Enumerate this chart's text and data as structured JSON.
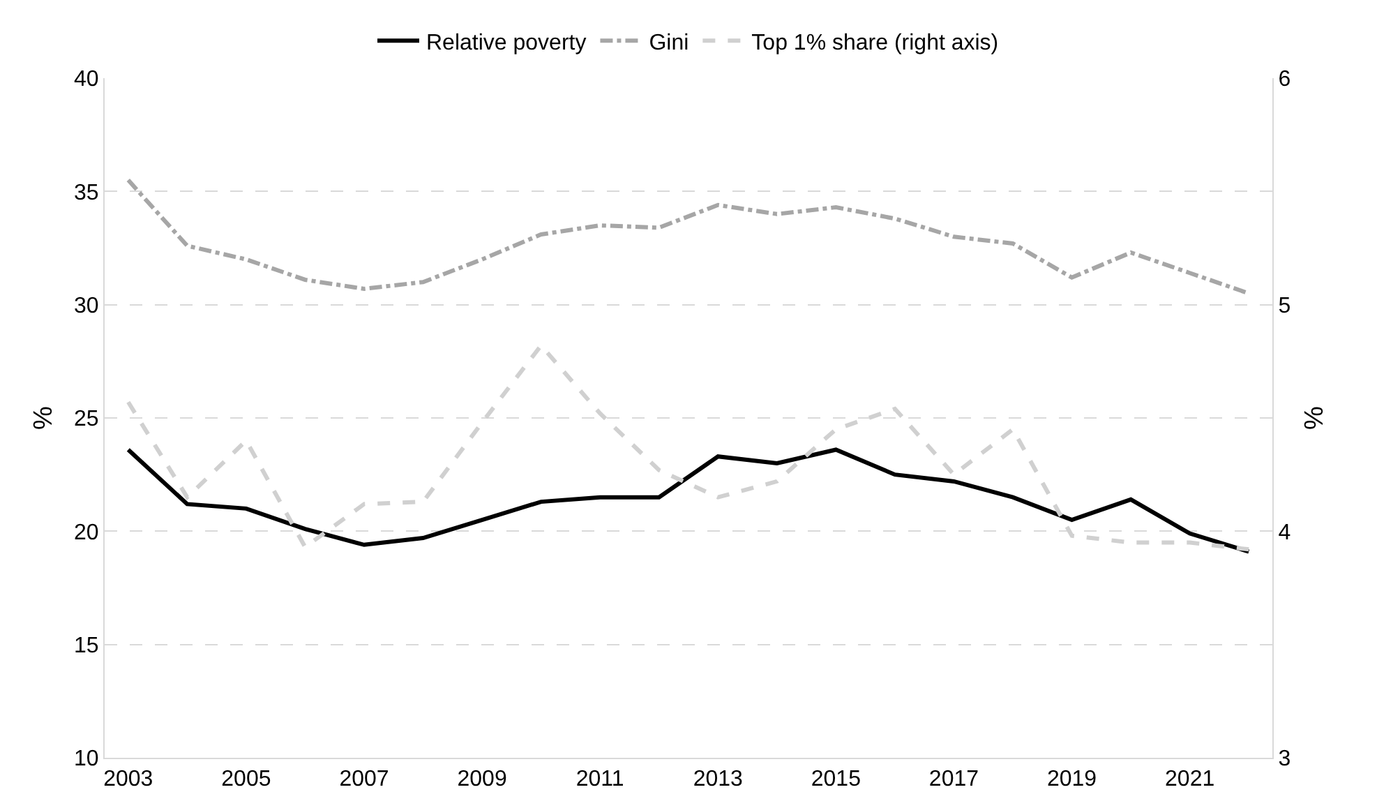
{
  "chart_data": {
    "type": "line",
    "ylabel": "%",
    "y2label": "%",
    "x": [
      2003,
      2004,
      2005,
      2006,
      2007,
      2008,
      2009,
      2010,
      2011,
      2012,
      2013,
      2014,
      2015,
      2016,
      2017,
      2018,
      2019,
      2020,
      2021,
      2022
    ],
    "series": [
      {
        "name": "Relative poverty",
        "color": "#000000",
        "line_style": "solid",
        "values": [
          23.6,
          21.2,
          21.0,
          20.1,
          19.4,
          19.7,
          20.5,
          21.3,
          21.5,
          21.5,
          23.3,
          23.0,
          23.6,
          22.5,
          22.2,
          21.5,
          20.5,
          21.4,
          19.9,
          19.1
        ]
      },
      {
        "name": "Gini",
        "color": "#a6a6a6",
        "line_style": "dashdot",
        "values": [
          35.5,
          32.6,
          32.0,
          31.1,
          30.7,
          31.0,
          32.0,
          33.1,
          33.5,
          33.4,
          34.4,
          34.0,
          34.3,
          33.8,
          33.0,
          32.7,
          31.2,
          32.3,
          31.4,
          30.5
        ]
      },
      {
        "name": "Top 1% share (right axis)",
        "color": "#d0d0d0",
        "line_style": "dashed",
        "axis": "y2",
        "values": [
          4.57,
          4.15,
          4.4,
          3.93,
          4.12,
          4.13,
          4.48,
          4.82,
          4.52,
          4.27,
          4.15,
          4.22,
          4.45,
          4.54,
          4.25,
          4.45,
          3.98,
          3.95,
          3.95,
          3.92
        ]
      }
    ],
    "xlim": [
      2002.6,
      2022.4
    ],
    "xticks": [
      2003,
      2005,
      2007,
      2009,
      2011,
      2013,
      2015,
      2017,
      2019,
      2021
    ],
    "ylim": [
      10,
      40
    ],
    "yticks": [
      10,
      15,
      20,
      25,
      30,
      35,
      40
    ],
    "y2lim": [
      3,
      6
    ],
    "y2ticks": [
      3,
      4,
      5,
      6
    ],
    "grid": "y",
    "legend": "top",
    "marker": "none"
  }
}
